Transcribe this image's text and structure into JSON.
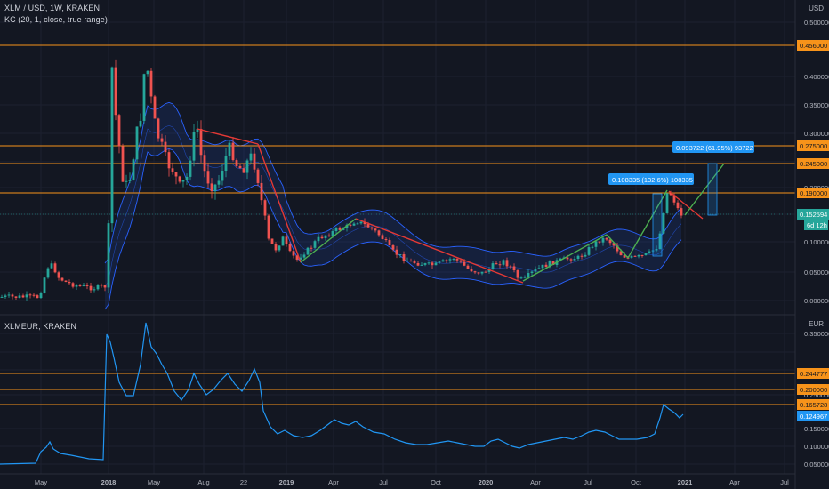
{
  "chart_title": "XLM / USD, 1W, KRAKEN",
  "indicator_label": "KC (20, 1, close, true range)",
  "sub_title": "XLMEUR, KRAKEN",
  "main_unit": "USD",
  "sub_unit": "EUR",
  "colors": {
    "background": "#131722",
    "up": "#26a69a",
    "down": "#ef5350",
    "channel": "#2962ff",
    "channel_fill": "#1e3a5f",
    "level": "#f7931a",
    "trend_up": "#4caf50",
    "trend_down": "#e53935",
    "measure": "#2196f3",
    "line": "#2196f3"
  },
  "main_axis": {
    "ticks": [
      "0.500000",
      "0.400000",
      "0.350000",
      "0.300000",
      "0.250000",
      "0.200000",
      "0.150000",
      "0.100000",
      "0.050000",
      "0.000000"
    ],
    "levels": [
      "0.456000",
      "0.275000",
      "0.245000",
      "0.190000"
    ],
    "price": "0.152594",
    "countdown": "6d 12h"
  },
  "sub_axis": {
    "ticks": [
      "0.350000",
      "0.300000",
      "0.250000",
      "0.150000",
      "0.100000",
      "0.050000",
      "0.000000"
    ],
    "levels": [
      "0.244777",
      "0.200000",
      "0.165728"
    ],
    "price": "0.124967"
  },
  "annotations": {
    "measure1": "0.108335 (132.6%) 108335",
    "measure2": "0.093722 (61.95%) 93722"
  },
  "time_axis": [
    "May",
    "2018",
    "May",
    "Aug",
    "22",
    "2019",
    "Apr",
    "Jul",
    "Oct",
    "2020",
    "Apr",
    "Jul",
    "Oct",
    "2021",
    "Apr",
    "Jul"
  ]
}
